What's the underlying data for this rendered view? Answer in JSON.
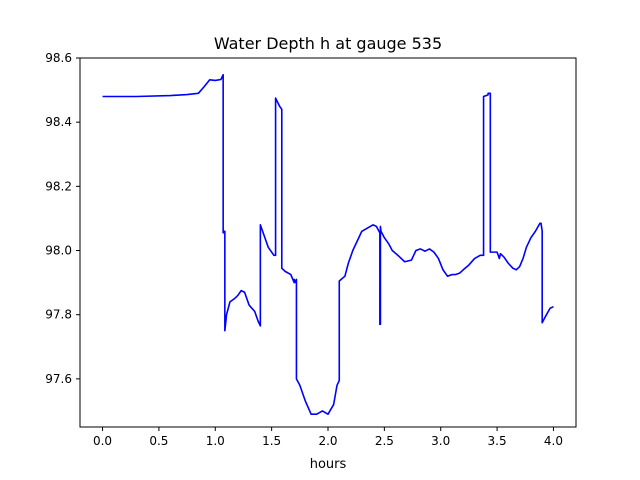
{
  "chart_data": {
    "type": "line",
    "title": "Water Depth h at gauge 535",
    "xlabel": "hours",
    "ylabel": "",
    "xlim": [
      -0.2,
      4.2
    ],
    "ylim": [
      97.45,
      98.6
    ],
    "x_ticks": [
      0.0,
      0.5,
      1.0,
      1.5,
      2.0,
      2.5,
      3.0,
      3.5,
      4.0
    ],
    "x_tick_labels": [
      "0.0",
      "0.5",
      "1.0",
      "1.5",
      "2.0",
      "2.5",
      "3.0",
      "3.5",
      "4.0"
    ],
    "y_ticks": [
      97.6,
      97.8,
      98.0,
      98.2,
      98.4,
      98.6
    ],
    "y_tick_labels": [
      "97.6",
      "97.8",
      "98.0",
      "98.2",
      "98.4",
      "98.6"
    ],
    "grid": false,
    "legend": "none",
    "series": [
      {
        "color": "#0000ff",
        "x": [
          0.0,
          0.3,
          0.6,
          0.75,
          0.85,
          0.9,
          0.95,
          1.0,
          1.05,
          1.07,
          1.07,
          1.08,
          1.085,
          1.085,
          1.1,
          1.13,
          1.17,
          1.2,
          1.23,
          1.26,
          1.3,
          1.35,
          1.38,
          1.4,
          1.4,
          1.43,
          1.47,
          1.52,
          1.535,
          1.535,
          1.57,
          1.59,
          1.59,
          1.62,
          1.67,
          1.7,
          1.7,
          1.715,
          1.72,
          1.72,
          1.75,
          1.8,
          1.85,
          1.9,
          1.95,
          2.0,
          2.05,
          2.08,
          2.1,
          2.1,
          2.15,
          2.18,
          2.22,
          2.26,
          2.3,
          2.35,
          2.4,
          2.43,
          2.46,
          2.46,
          2.465,
          2.465,
          2.47,
          2.5,
          2.54,
          2.57,
          2.62,
          2.68,
          2.74,
          2.78,
          2.82,
          2.86,
          2.9,
          2.94,
          2.98,
          3.02,
          3.06,
          3.1,
          3.13,
          3.17,
          3.2,
          3.25,
          3.3,
          3.35,
          3.38,
          3.38,
          3.42,
          3.42,
          3.44,
          3.44,
          3.5,
          3.52,
          3.53,
          3.56,
          3.6,
          3.64,
          3.67,
          3.7,
          3.73,
          3.76,
          3.8,
          3.84,
          3.88,
          3.89,
          3.9,
          3.9,
          3.93,
          3.97,
          4.0
        ],
        "y": [
          98.48,
          98.48,
          98.483,
          98.486,
          98.49,
          98.51,
          98.532,
          98.53,
          98.533,
          98.548,
          98.055,
          98.06,
          98.06,
          97.75,
          97.8,
          97.84,
          97.85,
          97.86,
          97.875,
          97.87,
          97.83,
          97.81,
          97.78,
          97.765,
          98.08,
          98.05,
          98.01,
          97.985,
          97.985,
          98.475,
          98.45,
          98.44,
          97.945,
          97.935,
          97.925,
          97.9,
          97.91,
          97.9,
          97.91,
          97.6,
          97.58,
          97.53,
          97.49,
          97.49,
          97.5,
          97.49,
          97.52,
          97.58,
          97.595,
          97.905,
          97.92,
          97.96,
          98.0,
          98.03,
          98.06,
          98.07,
          98.08,
          98.075,
          98.055,
          97.77,
          97.77,
          98.075,
          98.06,
          98.04,
          98.02,
          98.0,
          97.985,
          97.965,
          97.97,
          98.0,
          98.005,
          97.998,
          98.005,
          97.995,
          97.975,
          97.94,
          97.92,
          97.925,
          97.925,
          97.93,
          97.94,
          97.955,
          97.975,
          97.985,
          97.985,
          98.48,
          98.485,
          98.49,
          98.49,
          97.995,
          97.995,
          97.975,
          97.99,
          97.98,
          97.96,
          97.945,
          97.94,
          97.95,
          97.975,
          98.01,
          98.04,
          98.06,
          98.085,
          98.085,
          98.06,
          97.775,
          97.795,
          97.82,
          97.825
        ]
      }
    ]
  }
}
